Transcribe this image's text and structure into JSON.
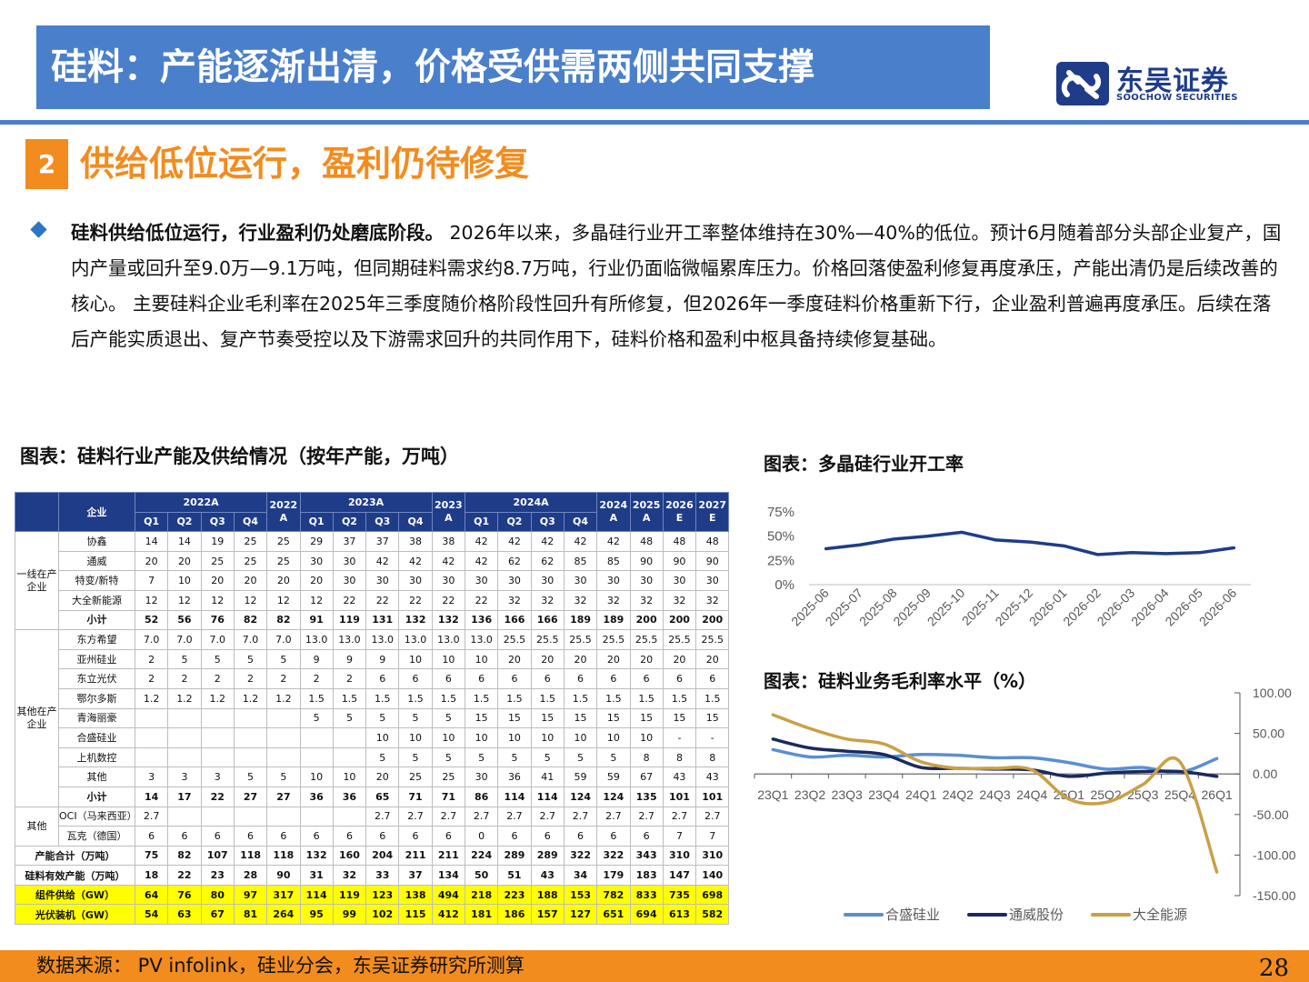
{
  "header": {
    "title": "硅料：产能逐渐出清，价格受供需两侧共同支撑"
  },
  "logo": {
    "cn": "东吴证券",
    "en": "SOOCHOW SECURITIES",
    "brand_color": "#1f3c88"
  },
  "section": {
    "number": "2",
    "title": "供给低位运行，盈利仍待修复",
    "accent": "#f28c1f"
  },
  "body": {
    "bold_lead": "硅料供给低位运行，行业盈利仍处磨底阶段。",
    "text": " 2026年以来，多晶硅行业开工率整体维持在30%—40%的低位。预计6月随着部分头部企业复产，国内产量或回升至9.0万—9.1万吨，但同期硅料需求约8.7万吨，行业仍面临微幅累库压力。价格回落使盈利修复再度承压，产能出清仍是后续改善的核心。 主要硅料企业毛利率在2025年三季度随价格阶段性回升有所修复，但2026年一季度硅料价格重新下行，企业盈利普遍再度承压。后续在落后产能实质退出、复产节奏受控以及下游需求回升的共同作用下，硅料价格和盈利中枢具备持续修复基础。"
  },
  "table": {
    "title": "图表：硅料行业产能及供给情况（按年产能，万吨）",
    "header": {
      "company": "企业",
      "groups": [
        "2022A",
        "2022A",
        "2023A",
        "2023A",
        "2024A",
        "2024A",
        "2025A",
        "2026E",
        "2027E"
      ],
      "g2022": "2022A",
      "g2023": "2023A",
      "g2024": "2024A",
      "y2022": "2022 A",
      "y2023": "2023 A",
      "y2024": "2024 A",
      "y2025": "2025 A",
      "y2026": "2026 E",
      "y2027": "2027 E",
      "quarters": [
        "Q1",
        "Q2",
        "Q3",
        "Q4"
      ]
    },
    "groups": {
      "tier1": "一线在产企业",
      "others": "其他在产企业",
      "misc": "其他"
    },
    "rows": [
      {
        "group": "tier1",
        "name": "协鑫",
        "vals": [
          "14",
          "14",
          "19",
          "25",
          "25",
          "29",
          "37",
          "37",
          "38",
          "38",
          "42",
          "42",
          "42",
          "42",
          "42",
          "48",
          "48",
          "48"
        ]
      },
      {
        "group": "tier1",
        "name": "通威",
        "vals": [
          "20",
          "20",
          "25",
          "25",
          "25",
          "30",
          "30",
          "42",
          "42",
          "42",
          "42",
          "62",
          "62",
          "85",
          "85",
          "90",
          "90",
          "90"
        ]
      },
      {
        "group": "tier1",
        "name": "特变/新特",
        "vals": [
          "7",
          "10",
          "20",
          "20",
          "20",
          "20",
          "30",
          "30",
          "30",
          "30",
          "30",
          "30",
          "30",
          "30",
          "30",
          "30",
          "30",
          "30"
        ]
      },
      {
        "group": "tier1",
        "name": "大全新能源",
        "vals": [
          "12",
          "12",
          "12",
          "12",
          "12",
          "12",
          "22",
          "22",
          "22",
          "22",
          "22",
          "32",
          "32",
          "32",
          "32",
          "32",
          "32",
          "32"
        ]
      },
      {
        "group": "tier1",
        "name": "小计",
        "bold": true,
        "vals": [
          "52",
          "56",
          "76",
          "82",
          "82",
          "91",
          "119",
          "131",
          "132",
          "132",
          "136",
          "166",
          "166",
          "189",
          "189",
          "200",
          "200",
          "200"
        ]
      },
      {
        "group": "others",
        "name": "东方希望",
        "vals": [
          "7.0",
          "7.0",
          "7.0",
          "7.0",
          "7.0",
          "13.0",
          "13.0",
          "13.0",
          "13.0",
          "13.0",
          "13.0",
          "25.5",
          "25.5",
          "25.5",
          "25.5",
          "25.5",
          "25.5",
          "25.5"
        ]
      },
      {
        "group": "others",
        "name": "亚州硅业",
        "vals": [
          "2",
          "5",
          "5",
          "5",
          "5",
          "9",
          "9",
          "9",
          "10",
          "10",
          "10",
          "20",
          "20",
          "20",
          "20",
          "20",
          "20",
          "20"
        ]
      },
      {
        "group": "others",
        "name": "东立光伏",
        "vals": [
          "2",
          "2",
          "2",
          "2",
          "2",
          "2",
          "2",
          "6",
          "6",
          "6",
          "6",
          "6",
          "6",
          "6",
          "6",
          "6",
          "6",
          "6"
        ]
      },
      {
        "group": "others",
        "name": "鄂尔多斯",
        "vals": [
          "1.2",
          "1.2",
          "1.2",
          "1.2",
          "1.2",
          "1.5",
          "1.5",
          "1.5",
          "1.5",
          "1.5",
          "1.5",
          "1.5",
          "1.5",
          "1.5",
          "1.5",
          "1.5",
          "1.5",
          "1.5"
        ]
      },
      {
        "group": "others",
        "name": "青海丽豪",
        "vals": [
          "",
          "",
          "",
          "",
          "",
          "5",
          "5",
          "5",
          "5",
          "5",
          "15",
          "15",
          "15",
          "15",
          "15",
          "15",
          "15",
          "15"
        ]
      },
      {
        "group": "others",
        "name": "合盛硅业",
        "vals": [
          "",
          "",
          "",
          "",
          "",
          "",
          "",
          "10",
          "10",
          "10",
          "10",
          "10",
          "10",
          "10",
          "10",
          "10",
          "-",
          "-"
        ]
      },
      {
        "group": "others",
        "name": "上机数控",
        "vals": [
          "",
          "",
          "",
          "",
          "",
          "",
          "",
          "5",
          "5",
          "5",
          "5",
          "5",
          "5",
          "5",
          "5",
          "8",
          "8",
          "8"
        ]
      },
      {
        "group": "others",
        "name": "其他",
        "vals": [
          "3",
          "3",
          "3",
          "5",
          "5",
          "10",
          "10",
          "20",
          "25",
          "25",
          "30",
          "36",
          "41",
          "59",
          "59",
          "67",
          "43",
          "43"
        ]
      },
      {
        "group": "others",
        "name": "小计",
        "bold": true,
        "vals": [
          "14",
          "17",
          "22",
          "27",
          "27",
          "36",
          "36",
          "65",
          "71",
          "71",
          "86",
          "114",
          "114",
          "124",
          "124",
          "135",
          "101",
          "101"
        ]
      },
      {
        "group": "misc",
        "name": "OCI（马来西亚）",
        "vals": [
          "2.7",
          "",
          "",
          "",
          "",
          "",
          "",
          "2.7",
          "2.7",
          "2.7",
          "2.7",
          "2.7",
          "2.7",
          "2.7",
          "2.7",
          "2.7",
          "2.7",
          "2.7"
        ]
      },
      {
        "group": "misc",
        "name": "瓦克（德国）",
        "vals": [
          "6",
          "6",
          "6",
          "6",
          "6",
          "6",
          "6",
          "6",
          "6",
          "6",
          "0",
          "6",
          "6",
          "6",
          "6",
          "6",
          "7",
          "7"
        ]
      }
    ],
    "summary_rows": [
      {
        "name": "产能合计（万吨）",
        "style": "bold",
        "vals": [
          "75",
          "82",
          "107",
          "118",
          "118",
          "132",
          "160",
          "204",
          "211",
          "211",
          "224",
          "289",
          "289",
          "322",
          "322",
          "343",
          "310",
          "310"
        ]
      },
      {
        "name": "硅料有效产能（万吨）",
        "style": "bold",
        "vals": [
          "18",
          "22",
          "23",
          "28",
          "90",
          "31",
          "32",
          "33",
          "37",
          "134",
          "50",
          "51",
          "43",
          "34",
          "179",
          "183",
          "147",
          "140"
        ]
      },
      {
        "name": "组件供给（GW）",
        "style": "yellow",
        "vals": [
          "64",
          "76",
          "80",
          "97",
          "317",
          "114",
          "119",
          "123",
          "138",
          "494",
          "218",
          "223",
          "188",
          "153",
          "782",
          "833",
          "735",
          "698"
        ]
      },
      {
        "name": "光伏装机（GW）",
        "style": "yellow",
        "vals": [
          "54",
          "63",
          "67",
          "81",
          "264",
          "95",
          "99",
          "102",
          "115",
          "412",
          "181",
          "186",
          "157",
          "127",
          "651",
          "694",
          "613",
          "582"
        ]
      }
    ]
  },
  "chart_data": [
    {
      "type": "line",
      "title": "图表：多晶硅行业开工率",
      "x": [
        "2025-06",
        "2025-07",
        "2025-08",
        "2025-09",
        "2025-10",
        "2025-11",
        "2025-12",
        "2026-01",
        "2026-02",
        "2026-03",
        "2026-04",
        "2026-05",
        "2026-06"
      ],
      "series": [
        {
          "values": [
            37,
            41,
            47,
            50,
            54,
            46,
            44,
            40,
            31,
            33,
            32,
            33,
            38
          ],
          "color": "#1f3c88"
        }
      ],
      "ylim": [
        0,
        75
      ],
      "yticks": [
        "75%",
        "50%",
        "25%",
        "0%"
      ],
      "grid": false,
      "legend": "none"
    },
    {
      "type": "line",
      "title": "图表：硅料业务毛利率水平（%）",
      "x": [
        "23Q1",
        "23Q2",
        "23Q3",
        "23Q4",
        "24Q1",
        "24Q2",
        "24Q3",
        "24Q4",
        "25Q1",
        "25Q2",
        "25Q3",
        "25Q4",
        "26Q1"
      ],
      "series": [
        {
          "name": "合盛硅业",
          "color": "#5b8fd0",
          "values": [
            30,
            21,
            23,
            21,
            24,
            23,
            20,
            20,
            14,
            6,
            8,
            2,
            19
          ]
        },
        {
          "name": "通威股份",
          "color": "#1a2a5e",
          "values": [
            43,
            32,
            28,
            24,
            8,
            7,
            6,
            5,
            -3,
            1,
            3,
            3,
            -3
          ]
        },
        {
          "name": "大全能源",
          "color": "#c9a045",
          "values": [
            73,
            56,
            43,
            37,
            15,
            7,
            7,
            5,
            -31,
            -35,
            -13,
            15,
            -121
          ]
        }
      ],
      "ylim": [
        -150,
        100
      ],
      "yticks": [
        "100.00",
        "50.00",
        "0.00",
        "-50.00",
        "-100.00",
        "-150.00"
      ],
      "legend": "bottom",
      "grid": false
    }
  ],
  "footer": {
    "source": "数据来源： PV infolink，硅业分会，东吴证券研究所测算",
    "page": "28"
  }
}
